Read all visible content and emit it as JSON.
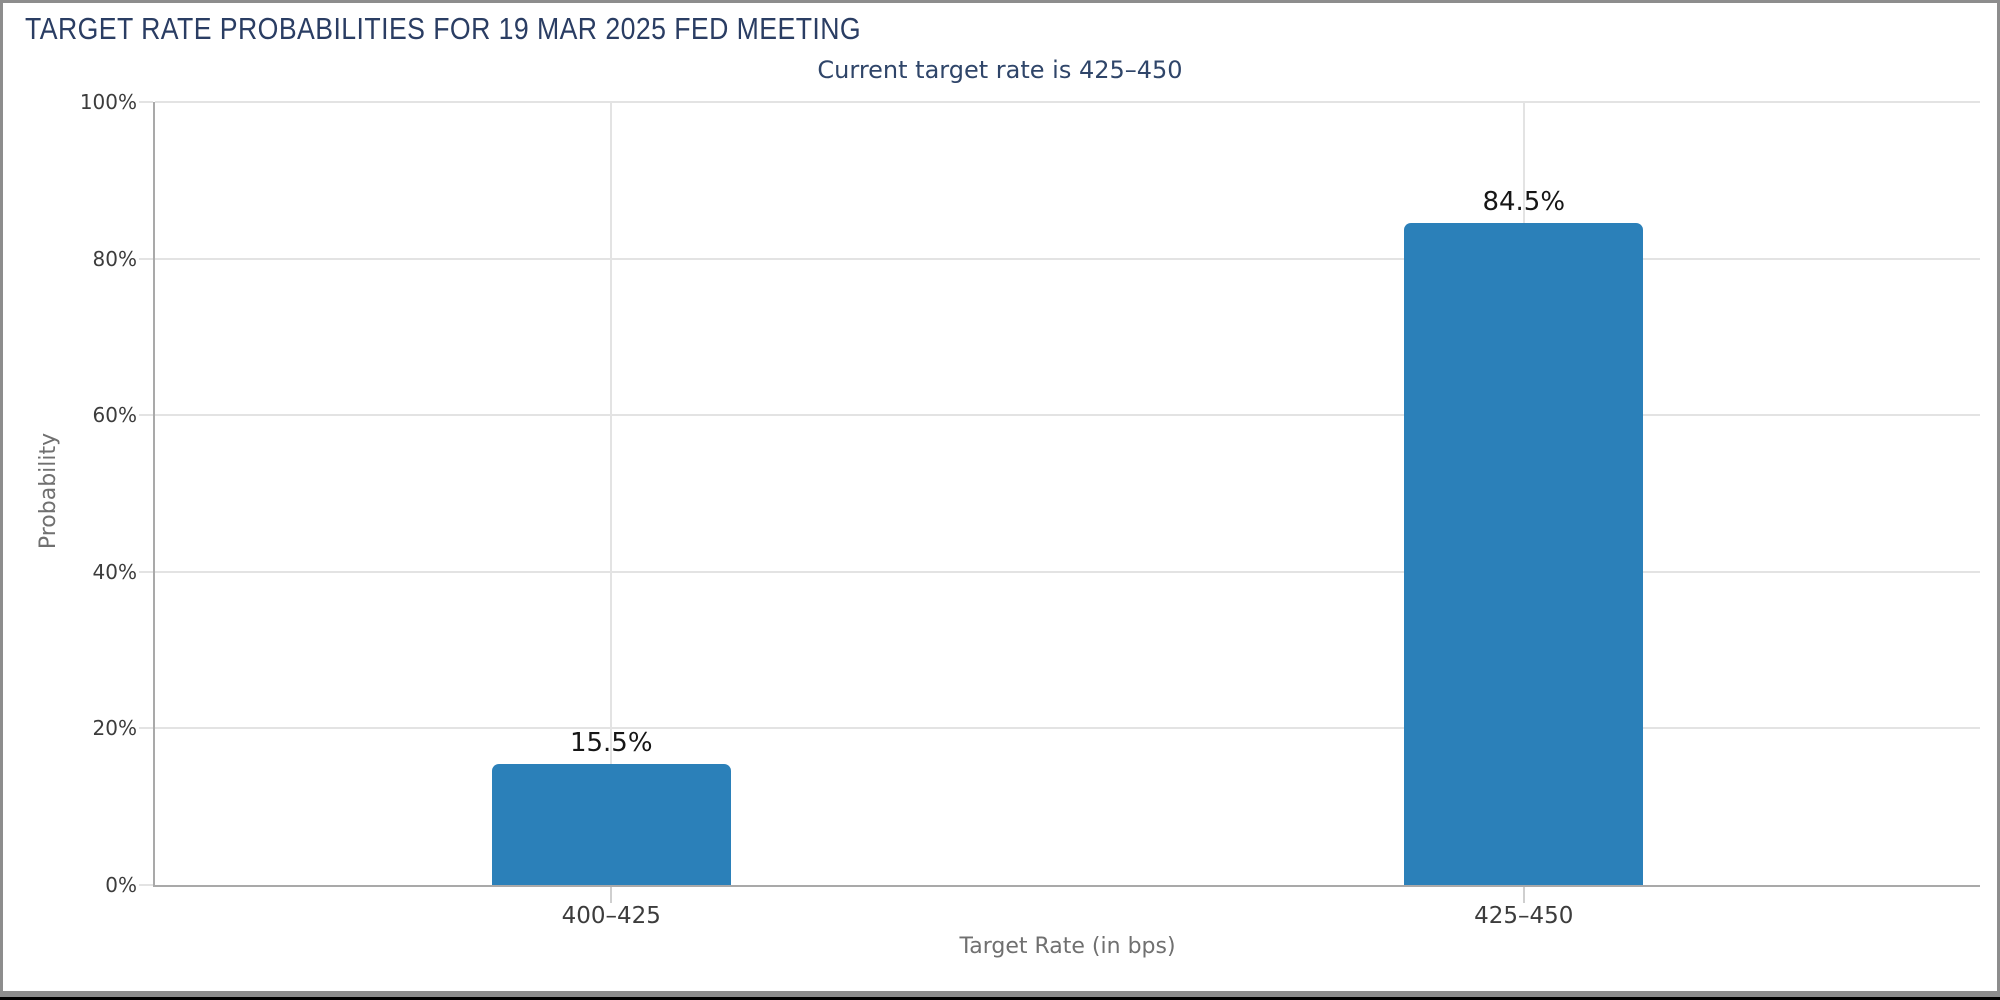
{
  "title": "TARGET RATE PROBABILITIES FOR 19 MAR 2025 FED MEETING",
  "subtitle": "Current target rate is 425–450",
  "chart_data": {
    "type": "bar",
    "title": "TARGET RATE PROBABILITIES FOR 19 MAR 2025 FED MEETING",
    "subtitle": "Current target rate is 425–450",
    "categories": [
      "400–425",
      "425–450"
    ],
    "values": [
      15.5,
      84.5
    ],
    "value_labels": [
      "15.5%",
      "84.5%"
    ],
    "xlabel": "Target Rate (in bps)",
    "ylabel": "Probability",
    "ylim": [
      0,
      100
    ],
    "yticks": [
      {
        "value": 0,
        "label": "0%"
      },
      {
        "value": 20,
        "label": "20%"
      },
      {
        "value": 40,
        "label": "40%"
      },
      {
        "value": 60,
        "label": "60%"
      },
      {
        "value": 80,
        "label": "80%"
      },
      {
        "value": 100,
        "label": "100%"
      }
    ],
    "grid": true,
    "legend": false,
    "bar_color": "#2b80b9"
  },
  "colors": {
    "title_text": "#2a3d63",
    "subtitle_text": "#2f4569",
    "bar": "#2b80b9",
    "grid": "#e3e3e3",
    "axis_spine": "#a9a9a9",
    "tick_text": "#3c3c3c",
    "axis_title_text": "#707070",
    "value_label_text": "#161616",
    "window_frame": "#8d8d8d",
    "bottom_strip": "#000000",
    "background": "#ffffff"
  }
}
